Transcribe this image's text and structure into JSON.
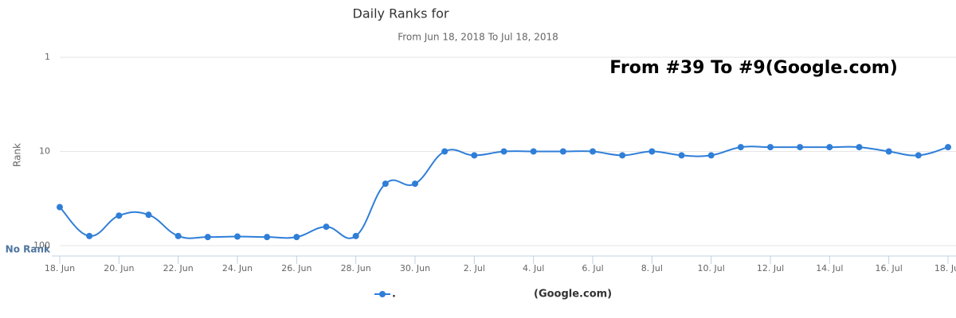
{
  "chart_data": {
    "type": "line",
    "title": "Daily Ranks for",
    "subtitle": "From Jun 18, 2018 To Jul 18, 2018",
    "annotation": "From #39 To #9(Google.com)",
    "y_label": "Rank",
    "no_rank_label": "No Rank",
    "log_scale": true,
    "y_reversed": true,
    "grid": true,
    "ylim": [
      1,
      100
    ],
    "yticks": [
      1,
      10,
      100
    ],
    "categories": [
      "18. Jun",
      null,
      "20. Jun",
      null,
      "22. Jun",
      null,
      "24. Jun",
      null,
      "26. Jun",
      null,
      "28. Jun",
      null,
      "30. Jun",
      null,
      "2. Jul",
      null,
      "4. Jul",
      null,
      "6. Jul",
      null,
      "8. Jul",
      null,
      "10. Jul",
      null,
      "12. Jul",
      null,
      "14. Jul",
      null,
      "16. Jul",
      null,
      "18. Jul"
    ],
    "series": [
      {
        "name": ".",
        "color": "#2f7ed8",
        "values": [
          39,
          79,
          48,
          47,
          79,
          81,
          80,
          81,
          81,
          63,
          79,
          22,
          22,
          10,
          11,
          10,
          10,
          10,
          10,
          11,
          10,
          11,
          11,
          9,
          9,
          9,
          9,
          9,
          10,
          11,
          9
        ]
      }
    ],
    "legend_extra": "(Google.com)"
  }
}
